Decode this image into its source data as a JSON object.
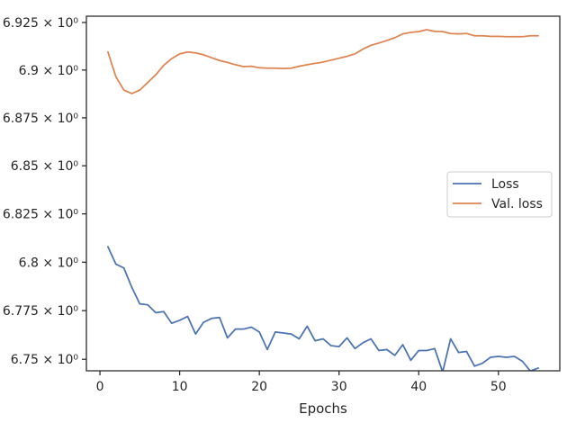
{
  "chart_data": {
    "type": "line",
    "title": "",
    "xlabel": "Epochs",
    "ylabel": "",
    "xlim": [
      -1.7,
      57.7
    ],
    "ylim": [
      6.7441,
      6.9283
    ],
    "yscale": "log",
    "xticks": [
      0,
      10,
      20,
      30,
      40,
      50
    ],
    "xtick_labels": [
      "0",
      "10",
      "20",
      "30",
      "40",
      "50"
    ],
    "yticks": [
      6.75,
      6.775,
      6.8,
      6.825,
      6.85,
      6.875,
      6.9,
      6.925
    ],
    "ytick_labels": [
      "6.75 × 10⁰",
      "6.775 × 10⁰",
      "6.8 × 10⁰",
      "6.825 × 10⁰",
      "6.85 × 10⁰",
      "6.875 × 10⁰",
      "6.9 × 10⁰",
      "6.925 × 10⁰"
    ],
    "grid": false,
    "legend_position": "center-right",
    "x": [
      1,
      2,
      3,
      4,
      5,
      6,
      7,
      8,
      9,
      10,
      11,
      12,
      13,
      14,
      15,
      16,
      17,
      18,
      19,
      20,
      21,
      22,
      23,
      24,
      25,
      26,
      27,
      28,
      29,
      30,
      31,
      32,
      33,
      34,
      35,
      36,
      37,
      38,
      39,
      40,
      41,
      42,
      43,
      44,
      45,
      46,
      47,
      48,
      49,
      50,
      51,
      52,
      53,
      54,
      55
    ],
    "series": [
      {
        "name": "Loss",
        "color": "#4c72b0",
        "values": [
          6.808,
          6.799,
          6.797,
          6.787,
          6.7785,
          6.778,
          6.774,
          6.7745,
          6.7685,
          6.77,
          6.772,
          6.763,
          6.769,
          6.771,
          6.7715,
          6.761,
          6.7655,
          6.7655,
          6.7665,
          6.764,
          6.755,
          6.764,
          6.7635,
          6.763,
          6.7605,
          6.767,
          6.7595,
          6.7605,
          6.757,
          6.7565,
          6.761,
          6.7555,
          6.7585,
          6.7605,
          6.7545,
          6.755,
          6.752,
          6.7575,
          6.7495,
          6.7545,
          6.7545,
          6.7555,
          6.7435,
          6.7605,
          6.7535,
          6.754,
          6.7465,
          6.748,
          6.751,
          6.7515,
          6.751,
          6.7515,
          6.749,
          6.744,
          6.7455
        ]
      },
      {
        "name": "Val. loss",
        "color": "#dd8452",
        "values": [
          6.9095,
          6.8965,
          6.8895,
          6.8877,
          6.8895,
          6.8935,
          6.8975,
          6.9025,
          6.906,
          6.9085,
          6.9095,
          6.909,
          6.908,
          6.9065,
          6.905,
          6.904,
          6.9028,
          6.9018,
          6.902,
          6.9012,
          6.901,
          6.901,
          6.9008,
          6.901,
          6.902,
          6.9028,
          6.9035,
          6.9042,
          6.9052,
          6.9062,
          6.9072,
          6.9085,
          6.911,
          6.913,
          6.9142,
          6.9155,
          6.917,
          6.919,
          6.9198,
          6.9202,
          6.9212,
          6.9203,
          6.9202,
          6.9192,
          6.919,
          6.9192,
          6.918,
          6.918,
          6.9177,
          6.9177,
          6.9175,
          6.9175,
          6.9175,
          6.918,
          6.918
        ]
      }
    ]
  }
}
